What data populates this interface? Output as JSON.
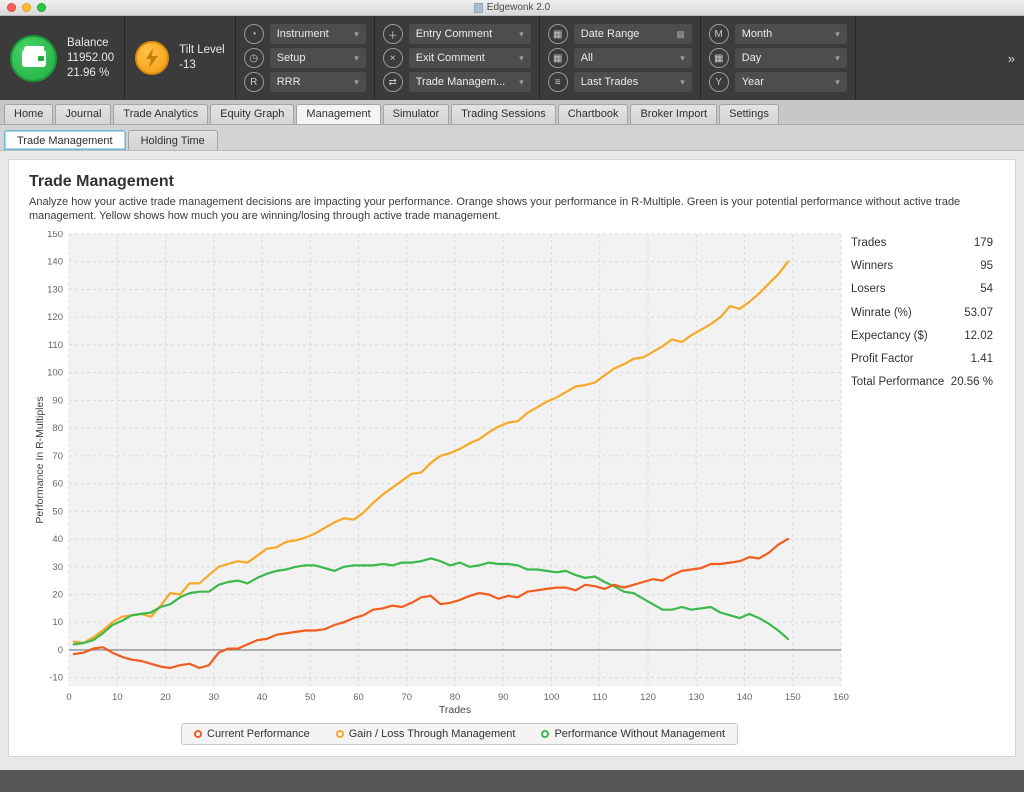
{
  "window": {
    "title": "Edgewonk 2.0"
  },
  "header": {
    "balance": {
      "label": "Balance",
      "value": "11952.00",
      "percent": "21.96 %"
    },
    "tilt": {
      "label": "Tilt Level",
      "value": "-13"
    },
    "filters": [
      {
        "icon": "instrument-icon",
        "glyph": "◔",
        "label": "Instrument",
        "right": "▾"
      },
      {
        "icon": "setup-icon",
        "glyph": "◷",
        "label": "Setup",
        "right": "▾"
      },
      {
        "icon": "rrr-icon",
        "glyph": "R",
        "label": "RRR",
        "right": "▾"
      },
      {
        "icon": "entry-comment-icon",
        "glyph": "＋",
        "label": "Entry Comment",
        "right": "▾"
      },
      {
        "icon": "exit-comment-icon",
        "glyph": "×",
        "label": "Exit Comment",
        "right": "▾"
      },
      {
        "icon": "trade-management-icon",
        "glyph": "⇄",
        "label": "Trade Managem...",
        "right": "▾"
      },
      {
        "icon": "date-range-icon",
        "glyph": "▦",
        "label": "Date Range",
        "right": "▦"
      },
      {
        "icon": "all-icon",
        "glyph": "▦",
        "label": "All",
        "right": "▾"
      },
      {
        "icon": "last-trades-icon",
        "glyph": "≡",
        "label": "Last Trades",
        "right": "▾"
      },
      {
        "icon": "month-icon",
        "glyph": "M",
        "label": "Month",
        "right": "▾"
      },
      {
        "icon": "day-icon",
        "glyph": "▦",
        "label": "Day",
        "right": "▾"
      },
      {
        "icon": "year-icon",
        "glyph": "Y",
        "label": "Year",
        "right": "▾"
      }
    ],
    "expand": "»"
  },
  "tabs": {
    "items": [
      {
        "label": "Home"
      },
      {
        "label": "Journal"
      },
      {
        "label": "Trade Analytics"
      },
      {
        "label": "Equity Graph"
      },
      {
        "label": "Management"
      },
      {
        "label": "Simulator"
      },
      {
        "label": "Trading Sessions"
      },
      {
        "label": "Chartbook"
      },
      {
        "label": "Broker Import"
      },
      {
        "label": "Settings"
      }
    ],
    "active": "Management"
  },
  "subtabs": {
    "items": [
      {
        "label": "Trade Management"
      },
      {
        "label": "Holding Time"
      }
    ],
    "active": "Trade Management"
  },
  "main": {
    "title": "Trade Management",
    "description": "Analyze how your active trade management decisions are impacting your performance. Orange shows your performance in R-Multiple. Green is your potential performance without active trade management. Yellow shows how much you are winning/losing through active trade management."
  },
  "stats": [
    {
      "label": "Trades",
      "value": "179"
    },
    {
      "label": "Winners",
      "value": "95"
    },
    {
      "label": "Losers",
      "value": "54"
    },
    {
      "label": "Winrate (%)",
      "value": "53.07"
    },
    {
      "label": "Expectancy ($)",
      "value": "12.02"
    },
    {
      "label": "Profit Factor",
      "value": "1.41"
    },
    {
      "label": "Total Performance",
      "value": "20.56 %"
    }
  ],
  "chart_data": {
    "type": "line",
    "title": "",
    "xlabel": "Trades",
    "ylabel": "Performance In R-Multiples",
    "xlim": [
      0,
      160
    ],
    "ylim": [
      -13,
      150
    ],
    "x_ticks": [
      0,
      10,
      20,
      30,
      40,
      50,
      60,
      70,
      80,
      90,
      100,
      110,
      120,
      130,
      140,
      150,
      160
    ],
    "y_ticks": [
      -10,
      0,
      10,
      20,
      30,
      40,
      50,
      60,
      70,
      80,
      90,
      100,
      110,
      120,
      130,
      140,
      150
    ],
    "grid": true,
    "legend_position": "bottom",
    "plot_bg": "#f2f2f2",
    "grid_color": "#dcdcdc",
    "zero_line_color": "#8f8f8f",
    "x": [
      1,
      3,
      5,
      7,
      9,
      11,
      13,
      15,
      17,
      19,
      21,
      23,
      25,
      27,
      29,
      31,
      33,
      35,
      37,
      39,
      41,
      43,
      45,
      47,
      49,
      51,
      53,
      55,
      57,
      59,
      61,
      63,
      65,
      67,
      69,
      71,
      73,
      75,
      77,
      79,
      81,
      83,
      85,
      87,
      89,
      91,
      93,
      95,
      97,
      99,
      101,
      103,
      105,
      107,
      109,
      111,
      113,
      115,
      117,
      119,
      121,
      123,
      125,
      127,
      129,
      131,
      133,
      135,
      137,
      139,
      141,
      143,
      145,
      147,
      149
    ],
    "series": [
      {
        "name": "Current Performance",
        "color": "#f25c1d",
        "values": [
          -1.5,
          -1,
          0.5,
          1,
          -1,
          -2.5,
          -3.5,
          -4,
          -5,
          -6,
          -6.5,
          -5.5,
          -5,
          -6.5,
          -5.5,
          -1,
          0.5,
          0.5,
          2,
          3.5,
          4,
          5.5,
          6,
          6.5,
          7,
          7,
          7.5,
          9,
          10,
          11.5,
          12.5,
          14.5,
          15,
          16,
          15.5,
          17,
          19,
          19.5,
          16.5,
          17,
          18,
          19.5,
          20.5,
          20,
          18.5,
          19.5,
          19,
          21,
          21.5,
          22,
          22.5,
          22.5,
          21.5,
          23.5,
          23,
          22,
          23.5,
          22.5,
          23.5,
          24.5,
          25.5,
          25,
          27,
          28.5,
          29,
          29.5,
          31,
          31,
          31.5,
          32,
          33.5,
          33,
          35,
          38,
          40
        ]
      },
      {
        "name": "Gain / Loss Through Management",
        "color": "#f9a825",
        "values": [
          3,
          2.5,
          4.5,
          7,
          10,
          12,
          12.5,
          13,
          12,
          16,
          20.5,
          20,
          24,
          24,
          27,
          30,
          31,
          32,
          31.5,
          34,
          36.5,
          37,
          39,
          39.5,
          40.5,
          42,
          44,
          46,
          47.5,
          47,
          49.5,
          53,
          56,
          58.5,
          61,
          63.5,
          64,
          67.5,
          70,
          71,
          72.5,
          74.5,
          76,
          78.5,
          80.5,
          82,
          82.5,
          85.5,
          87.5,
          89.5,
          91,
          93,
          95,
          95.5,
          96.5,
          99,
          101.5,
          103,
          105,
          105.5,
          107.5,
          109.5,
          112,
          111,
          113.5,
          115.5,
          117.5,
          120,
          124,
          123,
          125.5,
          128.5,
          132,
          135.5,
          140
        ]
      },
      {
        "name": "Performance Without Management",
        "color": "#3cb94c",
        "values": [
          2,
          2.5,
          3.5,
          6,
          9,
          10.5,
          12.5,
          13,
          13.5,
          15.5,
          16.5,
          19,
          20.5,
          21,
          21,
          23.5,
          24.5,
          25,
          24,
          26,
          27.5,
          28.5,
          29,
          30,
          30.5,
          30.5,
          29.5,
          28.5,
          30,
          30.5,
          30.5,
          30.5,
          31,
          30.5,
          31.5,
          31.5,
          32,
          33,
          32,
          30.5,
          31.5,
          30,
          30.5,
          31.5,
          31,
          31,
          30.5,
          29,
          29,
          28.5,
          28,
          28.5,
          27,
          26,
          26.5,
          24.5,
          23,
          21,
          20.5,
          18.5,
          16.5,
          14.5,
          14.5,
          15.5,
          14.5,
          15,
          15.5,
          13.5,
          12.5,
          11.5,
          13,
          11.5,
          9.5,
          7,
          4
        ]
      }
    ]
  }
}
